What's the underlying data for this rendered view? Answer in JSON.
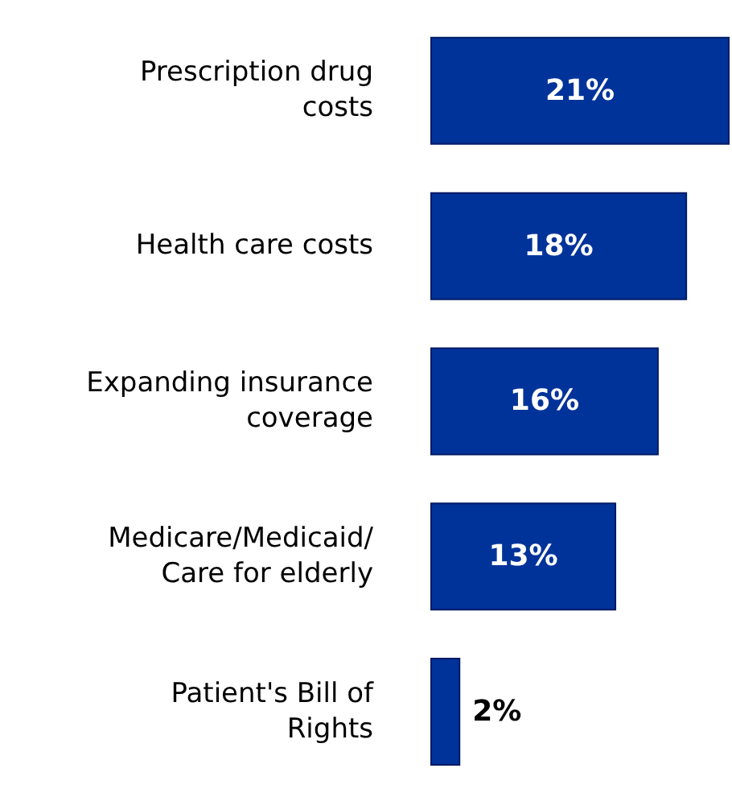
{
  "chart_data": {
    "type": "bar",
    "orientation": "horizontal",
    "categories": [
      "Prescription drug costs",
      "Health care costs",
      "Expanding insurance coverage",
      "Medicare/Medicaid/ Care for elderly",
      "Patient's Bill of Rights"
    ],
    "values": [
      21,
      18,
      16,
      13,
      2
    ],
    "color": "#003399",
    "value_labels": [
      "21%",
      "18%",
      "16%",
      "13%",
      "2%"
    ],
    "grid": false,
    "legend": false
  }
}
